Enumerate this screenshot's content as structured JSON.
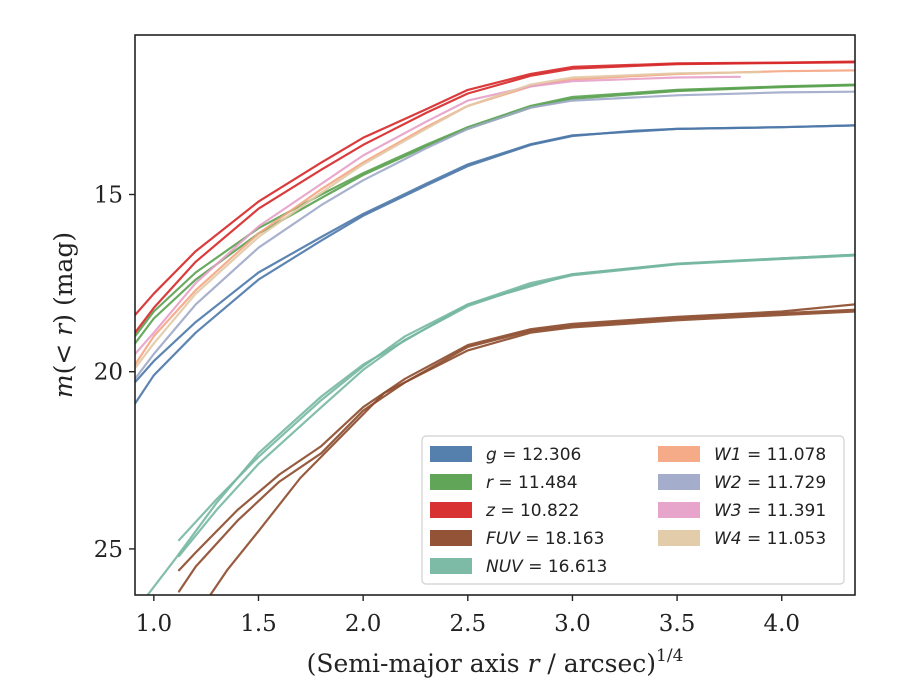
{
  "chart_data": {
    "type": "line",
    "title": "",
    "xlabel": "(Semi-major axis r / arcsec)",
    "xlabel_sup": "1/4",
    "ylabel": "m(< r) (mag)",
    "xlim": [
      0.91,
      4.35
    ],
    "ylim": [
      26.3,
      10.5
    ],
    "y_inverted": true,
    "grid": false,
    "legend_position": "lower-right",
    "legend_columns": 2,
    "x_ticks": [
      "1.0",
      "1.5",
      "2.0",
      "2.5",
      "3.0",
      "3.5",
      "4.0"
    ],
    "x_tick_values": [
      1.0,
      1.5,
      2.0,
      2.5,
      3.0,
      3.5,
      4.0
    ],
    "y_ticks": [
      "15",
      "20",
      "25"
    ],
    "y_tick_values": [
      15,
      20,
      25
    ],
    "series": [
      {
        "name": "g = 12.306",
        "label_var": "g",
        "label_val": "12.306",
        "color": "#4c78a8",
        "curves": [
          [
            [
              0.91,
              20.9
            ],
            [
              1.0,
              20.1
            ],
            [
              1.2,
              18.9
            ],
            [
              1.5,
              17.4
            ],
            [
              1.8,
              16.3
            ],
            [
              2.0,
              15.6
            ],
            [
              2.3,
              14.75
            ],
            [
              2.5,
              14.2
            ],
            [
              2.8,
              13.6
            ],
            [
              3.0,
              13.35
            ],
            [
              3.3,
              13.2
            ],
            [
              3.5,
              13.15
            ],
            [
              4.0,
              13.1
            ],
            [
              4.35,
              13.05
            ]
          ],
          [
            [
              0.91,
              20.3
            ],
            [
              1.0,
              19.7
            ],
            [
              1.2,
              18.6
            ],
            [
              1.5,
              17.2
            ],
            [
              1.8,
              16.2
            ],
            [
              2.0,
              15.55
            ],
            [
              2.3,
              14.7
            ],
            [
              2.5,
              14.15
            ],
            [
              2.8,
              13.58
            ],
            [
              3.0,
              13.33
            ],
            [
              3.5,
              13.15
            ],
            [
              4.0,
              13.1
            ],
            [
              4.35,
              13.05
            ]
          ]
        ]
      },
      {
        "name": "r = 11.484",
        "label_var": "r",
        "label_val": "11.484",
        "color": "#59a14f",
        "curves": [
          [
            [
              0.91,
              19.0
            ],
            [
              1.0,
              18.3
            ],
            [
              1.2,
              17.2
            ],
            [
              1.5,
              15.95
            ],
            [
              1.8,
              15.0
            ],
            [
              2.0,
              14.4
            ],
            [
              2.3,
              13.6
            ],
            [
              2.5,
              13.1
            ],
            [
              2.8,
              12.5
            ],
            [
              3.0,
              12.25
            ],
            [
              3.5,
              12.05
            ],
            [
              4.0,
              11.95
            ],
            [
              4.35,
              11.9
            ]
          ],
          [
            [
              0.91,
              19.2
            ],
            [
              1.0,
              18.5
            ],
            [
              1.2,
              17.4
            ],
            [
              1.5,
              16.1
            ],
            [
              1.8,
              15.1
            ],
            [
              2.0,
              14.45
            ],
            [
              2.3,
              13.65
            ],
            [
              2.5,
              13.15
            ],
            [
              2.8,
              12.55
            ],
            [
              3.0,
              12.3
            ],
            [
              3.5,
              12.08
            ],
            [
              4.0,
              11.97
            ],
            [
              4.35,
              11.92
            ]
          ]
        ]
      },
      {
        "name": "z = 10.822",
        "label_var": "z",
        "label_val": "10.822",
        "color": "#d62728",
        "curves": [
          [
            [
              0.91,
              18.4
            ],
            [
              1.0,
              17.8
            ],
            [
              1.2,
              16.6
            ],
            [
              1.5,
              15.2
            ],
            [
              1.8,
              14.1
            ],
            [
              2.0,
              13.4
            ],
            [
              2.3,
              12.6
            ],
            [
              2.5,
              12.05
            ],
            [
              2.8,
              11.6
            ],
            [
              3.0,
              11.4
            ],
            [
              3.5,
              11.3
            ],
            [
              4.0,
              11.28
            ],
            [
              4.35,
              11.25
            ]
          ],
          [
            [
              0.91,
              18.9
            ],
            [
              1.0,
              18.2
            ],
            [
              1.2,
              16.9
            ],
            [
              1.5,
              15.4
            ],
            [
              1.8,
              14.3
            ],
            [
              2.0,
              13.6
            ],
            [
              2.3,
              12.7
            ],
            [
              2.5,
              12.15
            ],
            [
              2.8,
              11.65
            ],
            [
              3.0,
              11.45
            ],
            [
              3.5,
              11.32
            ],
            [
              4.0,
              11.29
            ],
            [
              4.35,
              11.27
            ]
          ]
        ]
      },
      {
        "name": "FUV = 18.163",
        "label_var": "FUV",
        "label_val": "18.163",
        "color": "#8c4a2b",
        "curves": [
          [
            [
              1.12,
              26.2
            ],
            [
              1.2,
              25.5
            ],
            [
              1.4,
              24.2
            ],
            [
              1.6,
              23.1
            ],
            [
              1.8,
              22.3
            ],
            [
              2.0,
              21.1
            ],
            [
              2.2,
              20.3
            ],
            [
              2.5,
              19.3
            ],
            [
              2.8,
              18.85
            ],
            [
              3.0,
              18.7
            ],
            [
              3.5,
              18.5
            ],
            [
              4.0,
              18.35
            ],
            [
              4.35,
              18.25
            ]
          ],
          [
            [
              1.12,
              25.6
            ],
            [
              1.2,
              25.1
            ],
            [
              1.4,
              23.9
            ],
            [
              1.6,
              22.9
            ],
            [
              1.8,
              22.1
            ],
            [
              2.0,
              21.0
            ],
            [
              2.2,
              20.2
            ],
            [
              2.5,
              19.25
            ],
            [
              2.8,
              18.8
            ],
            [
              3.0,
              18.65
            ],
            [
              3.5,
              18.45
            ],
            [
              4.0,
              18.3
            ],
            [
              4.35,
              18.1
            ]
          ],
          [
            [
              1.27,
              26.3
            ],
            [
              1.35,
              25.6
            ],
            [
              1.5,
              24.5
            ],
            [
              1.7,
              23.0
            ],
            [
              1.9,
              21.8
            ],
            [
              2.1,
              20.6
            ],
            [
              2.3,
              20.0
            ],
            [
              2.5,
              19.4
            ],
            [
              2.8,
              18.9
            ],
            [
              3.0,
              18.75
            ],
            [
              3.5,
              18.55
            ],
            [
              4.0,
              18.4
            ],
            [
              4.35,
              18.3
            ]
          ]
        ]
      },
      {
        "name": "NUV = 16.613",
        "label_var": "NUV",
        "label_val": "16.613",
        "color": "#76b7a2",
        "curves": [
          [
            [
              1.12,
              24.75
            ],
            [
              1.3,
              23.6
            ],
            [
              1.5,
              22.4
            ],
            [
              1.8,
              20.8
            ],
            [
              2.0,
              19.85
            ],
            [
              2.2,
              19.0
            ],
            [
              2.5,
              18.1
            ],
            [
              2.8,
              17.5
            ],
            [
              3.0,
              17.25
            ],
            [
              3.5,
              16.95
            ],
            [
              4.0,
              16.8
            ],
            [
              4.35,
              16.7
            ]
          ],
          [
            [
              1.12,
              25.2
            ],
            [
              1.3,
              23.9
            ],
            [
              1.5,
              22.6
            ],
            [
              1.8,
              21.0
            ],
            [
              2.0,
              19.95
            ],
            [
              2.2,
              19.1
            ],
            [
              2.5,
              18.15
            ],
            [
              2.8,
              17.55
            ],
            [
              3.0,
              17.28
            ],
            [
              3.5,
              16.97
            ],
            [
              4.0,
              16.82
            ],
            [
              4.35,
              16.72
            ]
          ],
          [
            [
              0.97,
              26.3
            ],
            [
              1.1,
              25.3
            ],
            [
              1.3,
              23.7
            ],
            [
              1.5,
              22.3
            ],
            [
              1.8,
              20.7
            ],
            [
              2.0,
              19.8
            ],
            [
              2.5,
              18.1
            ],
            [
              3.0,
              17.25
            ],
            [
              3.5,
              16.96
            ],
            [
              4.0,
              16.8
            ],
            [
              4.35,
              16.7
            ]
          ]
        ]
      },
      {
        "name": "W1 = 11.078",
        "label_var": "W1",
        "label_val": "11.078",
        "color": "#f4a582",
        "curves": [
          [
            [
              0.91,
              19.8
            ],
            [
              1.0,
              19.0
            ],
            [
              1.2,
              17.7
            ],
            [
              1.5,
              16.1
            ],
            [
              1.8,
              14.85
            ],
            [
              2.0,
              14.1
            ],
            [
              2.3,
              13.1
            ],
            [
              2.5,
              12.5
            ],
            [
              2.8,
              11.95
            ],
            [
              3.0,
              11.75
            ],
            [
              3.5,
              11.6
            ],
            [
              4.0,
              11.52
            ],
            [
              4.35,
              11.5
            ]
          ]
        ]
      },
      {
        "name": "W2 = 11.729",
        "label_var": "W2",
        "label_val": "11.729",
        "color": "#9fa9c9",
        "curves": [
          [
            [
              0.91,
              20.2
            ],
            [
              1.0,
              19.5
            ],
            [
              1.2,
              18.1
            ],
            [
              1.5,
              16.5
            ],
            [
              1.8,
              15.3
            ],
            [
              2.0,
              14.6
            ],
            [
              2.3,
              13.7
            ],
            [
              2.5,
              13.15
            ],
            [
              2.8,
              12.55
            ],
            [
              3.0,
              12.35
            ],
            [
              3.5,
              12.2
            ],
            [
              4.0,
              12.12
            ],
            [
              4.35,
              12.1
            ]
          ]
        ]
      },
      {
        "name": "W3 = 11.391",
        "label_var": "W3",
        "label_val": "11.391",
        "color": "#e6a0c8",
        "curves": [
          [
            [
              0.91,
              19.5
            ],
            [
              1.0,
              18.9
            ],
            [
              1.2,
              17.5
            ],
            [
              1.5,
              15.9
            ],
            [
              1.8,
              14.7
            ],
            [
              2.0,
              13.9
            ],
            [
              2.3,
              12.95
            ],
            [
              2.5,
              12.35
            ],
            [
              2.8,
              11.95
            ],
            [
              3.0,
              11.8
            ],
            [
              3.5,
              11.7
            ],
            [
              3.8,
              11.68
            ]
          ]
        ]
      },
      {
        "name": "W4 = 11.053",
        "label_var": "W4",
        "label_val": "11.053",
        "color": "#e2c9a5",
        "curves": [
          [
            [
              0.91,
              19.9
            ],
            [
              1.0,
              19.2
            ],
            [
              1.2,
              17.8
            ],
            [
              1.5,
              16.2
            ],
            [
              1.8,
              14.95
            ],
            [
              2.0,
              14.15
            ],
            [
              2.3,
              13.15
            ],
            [
              2.5,
              12.5
            ],
            [
              2.8,
              11.9
            ],
            [
              3.0,
              11.7
            ],
            [
              3.5,
              11.58
            ],
            [
              3.9,
              11.55
            ]
          ]
        ]
      }
    ]
  }
}
